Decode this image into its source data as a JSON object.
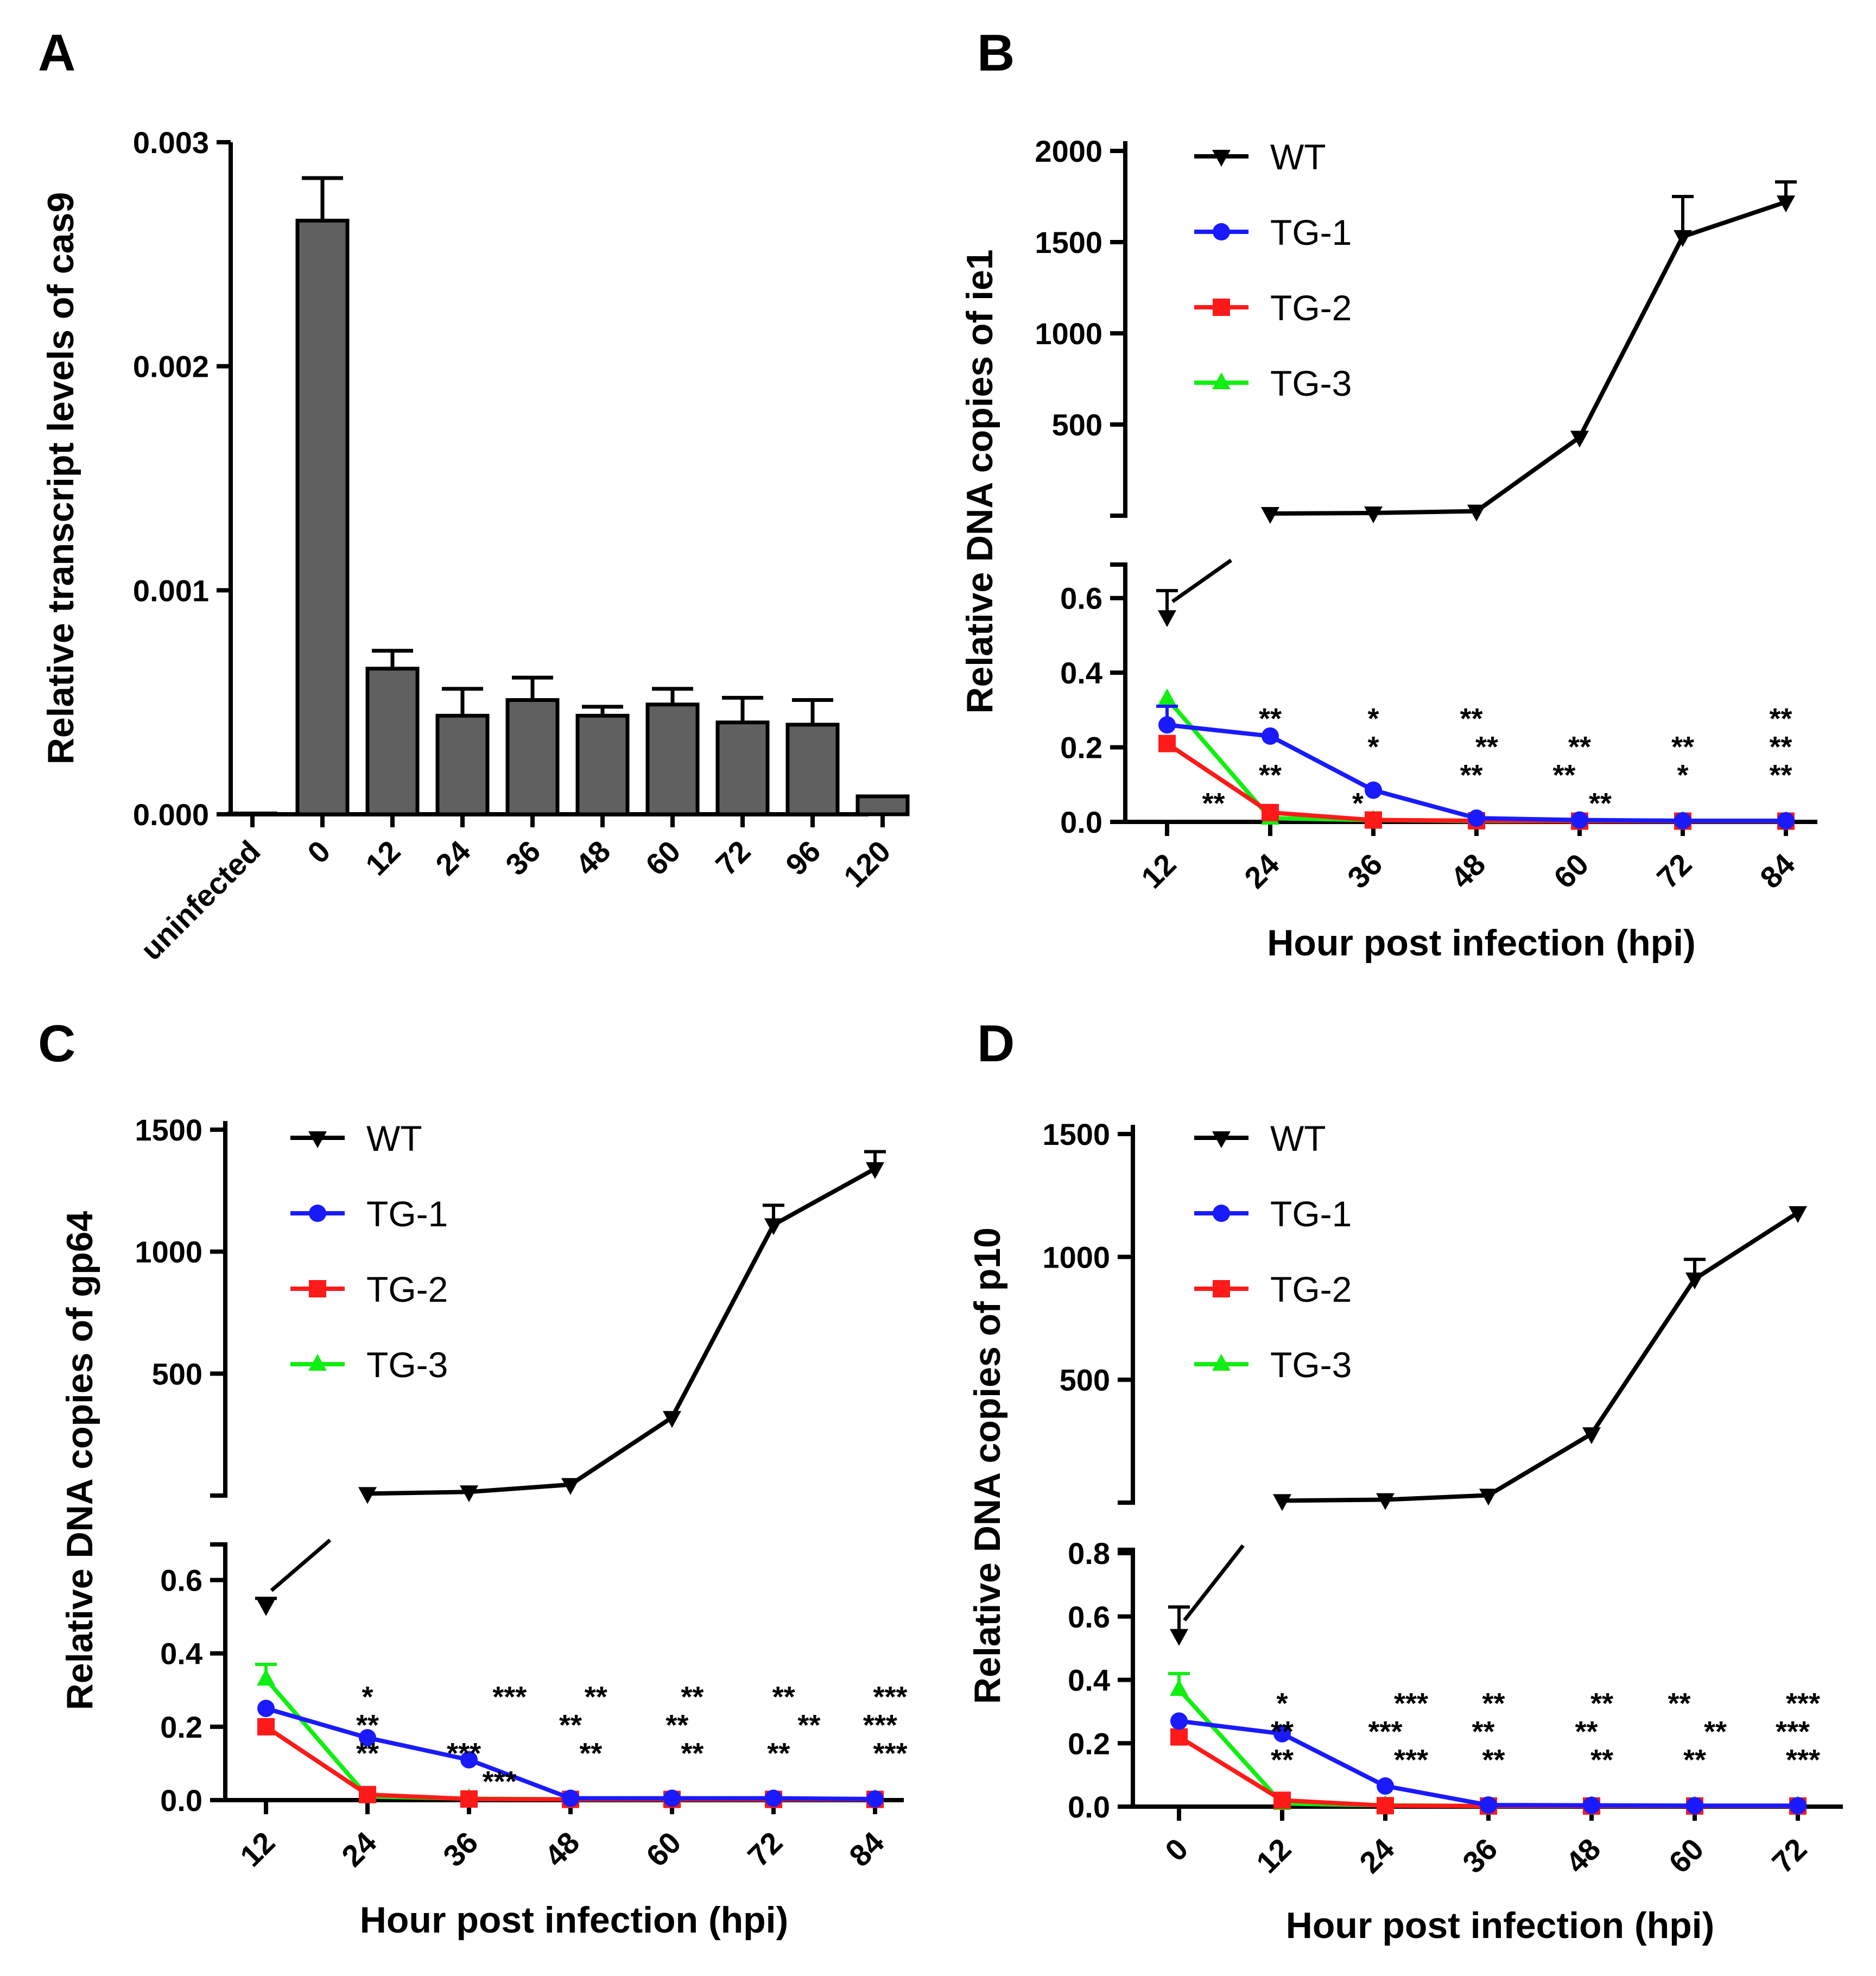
{
  "chart_data": [
    {
      "id": "A",
      "panel_label": "A",
      "type": "bar",
      "ylabel": "Relative transcript levels of cas9",
      "xlabel": "",
      "ylim": [
        0,
        0.003
      ],
      "yticks": [
        0.0,
        0.001,
        0.002,
        0.003
      ],
      "ytick_labels": [
        "0.000",
        "0.001",
        "0.002",
        "0.003"
      ],
      "categories": [
        "uninfected",
        "0",
        "12",
        "24",
        "36",
        "48",
        "60",
        "72",
        "96",
        "120"
      ],
      "values": [
        0.0,
        0.00265,
        0.00065,
        0.00044,
        0.00051,
        0.00044,
        0.00049,
        0.00041,
        0.0004,
        8e-05
      ],
      "errors": [
        0.0,
        0.00019,
        8e-05,
        0.00012,
        0.0001,
        4e-05,
        7e-05,
        0.00011,
        0.00011,
        0.0
      ],
      "bar_color": "#606060"
    },
    {
      "id": "B",
      "panel_label": "B",
      "type": "line",
      "ylabel": "Relative DNA copies of ie1",
      "xlabel": "Hour post  infection (hpi)",
      "x": [
        "12",
        "24",
        "36",
        "48",
        "60",
        "72",
        "84"
      ],
      "upper_ylim": [
        0,
        2000
      ],
      "upper_yticks": [
        500,
        1000,
        1500,
        2000
      ],
      "lower_ylim": [
        0,
        0.7
      ],
      "lower_yticks": [
        0.0,
        0.2,
        0.4,
        0.6
      ],
      "lower_ytick_labels": [
        "0.0",
        "0.2",
        "0.4",
        "0.6"
      ],
      "series": [
        {
          "name": "WT",
          "color": "#000000",
          "marker": "tri-down",
          "values": [
            0.55,
            12,
            15,
            25,
            430,
            1530,
            1720
          ],
          "errors": [
            0.07,
            0,
            0,
            0,
            0,
            220,
            110
          ]
        },
        {
          "name": "TG-1",
          "color": "#1a1aff",
          "marker": "circle",
          "values": [
            0.26,
            0.23,
            0.085,
            0.01,
            0.005,
            0.003,
            0.003
          ],
          "errors": [
            0.05,
            0,
            0,
            0,
            0,
            0,
            0
          ]
        },
        {
          "name": "TG-2",
          "color": "#ff1a1a",
          "marker": "square",
          "values": [
            0.21,
            0.025,
            0.005,
            0.003,
            0.002,
            0.002,
            0.002
          ],
          "errors": [
            0,
            0,
            0,
            0,
            0,
            0,
            0
          ]
        },
        {
          "name": "TG-3",
          "color": "#11ee11",
          "marker": "tri-up",
          "values": [
            0.33,
            0.01,
            0.005,
            0.002,
            0.002,
            0.002,
            0.002
          ],
          "errors": [
            0,
            0,
            0,
            0,
            0,
            0,
            0
          ]
        }
      ],
      "annotations": [
        {
          "text": "**",
          "x": 1,
          "row": 3
        },
        {
          "text": "**",
          "x": 0.45,
          "row": 0
        },
        {
          "text": "**",
          "x": 1,
          "row": 1
        },
        {
          "text": "*",
          "x": 2,
          "row": 3
        },
        {
          "text": "*",
          "x": 2,
          "row": 2
        },
        {
          "text": "*",
          "x": 1.85,
          "row": 0
        },
        {
          "text": "**",
          "x": 2.95,
          "row": 3
        },
        {
          "text": "**",
          "x": 3.1,
          "row": 2
        },
        {
          "text": "**",
          "x": 2.95,
          "row": 1
        },
        {
          "text": "**",
          "x": 4,
          "row": 2
        },
        {
          "text": "**",
          "x": 3.85,
          "row": 1
        },
        {
          "text": "**",
          "x": 4.2,
          "row": 0
        },
        {
          "text": "**",
          "x": 5,
          "row": 2
        },
        {
          "text": "*",
          "x": 5,
          "row": 1
        },
        {
          "text": "**",
          "x": 5.95,
          "row": 3
        },
        {
          "text": "**",
          "x": 5.95,
          "row": 2
        },
        {
          "text": "**",
          "x": 5.95,
          "row": 1
        }
      ]
    },
    {
      "id": "C",
      "panel_label": "C",
      "type": "line",
      "ylabel": "Relative DNA copies of gp64",
      "xlabel": "Hour post  infection (hpi)",
      "x": [
        "12",
        "24",
        "36",
        "48",
        "60",
        "72",
        "84"
      ],
      "upper_ylim": [
        0,
        1500
      ],
      "upper_yticks": [
        500,
        1000,
        1500
      ],
      "lower_ylim": [
        0,
        0.7
      ],
      "lower_yticks": [
        0.0,
        0.2,
        0.4,
        0.6
      ],
      "lower_ytick_labels": [
        "0.0",
        "0.2",
        "0.4",
        "0.6"
      ],
      "series": [
        {
          "name": "WT",
          "color": "#000000",
          "marker": "tri-down",
          "values": [
            0.53,
            8,
            15,
            45,
            320,
            1110,
            1340
          ],
          "errors": [
            0.02,
            0,
            0,
            0,
            0,
            80,
            70
          ]
        },
        {
          "name": "TG-1",
          "color": "#1a1aff",
          "marker": "circle",
          "values": [
            0.25,
            0.17,
            0.11,
            0.005,
            0.005,
            0.005,
            0.003
          ],
          "errors": [
            0,
            0,
            0,
            0,
            0,
            0,
            0
          ]
        },
        {
          "name": "TG-2",
          "color": "#ff1a1a",
          "marker": "square",
          "values": [
            0.2,
            0.015,
            0.003,
            0.002,
            0.002,
            0.002,
            0.002
          ],
          "errors": [
            0,
            0,
            0,
            0,
            0,
            0,
            0
          ]
        },
        {
          "name": "TG-3",
          "color": "#11ee11",
          "marker": "tri-up",
          "values": [
            0.33,
            0.01,
            0.004,
            0.002,
            0.002,
            0.002,
            0.002
          ],
          "errors": [
            0.04,
            0,
            0,
            0,
            0,
            0,
            0
          ]
        }
      ],
      "annotations": [
        {
          "text": "*",
          "x": 1,
          "row": 3
        },
        {
          "text": "**",
          "x": 1,
          "row": 2
        },
        {
          "text": "**",
          "x": 1,
          "row": 1
        },
        {
          "text": "***",
          "x": 2.4,
          "row": 3
        },
        {
          "text": "***",
          "x": 1.95,
          "row": 1
        },
        {
          "text": "***",
          "x": 2.3,
          "row": 0
        },
        {
          "text": "**",
          "x": 3.25,
          "row": 3
        },
        {
          "text": "**",
          "x": 3,
          "row": 2
        },
        {
          "text": "**",
          "x": 3.2,
          "row": 1
        },
        {
          "text": "**",
          "x": 4.2,
          "row": 3
        },
        {
          "text": "**",
          "x": 4.05,
          "row": 2
        },
        {
          "text": "**",
          "x": 4.2,
          "row": 1
        },
        {
          "text": "**",
          "x": 5.1,
          "row": 3
        },
        {
          "text": "**",
          "x": 5.35,
          "row": 2
        },
        {
          "text": "**",
          "x": 5.05,
          "row": 1
        },
        {
          "text": "***",
          "x": 6.15,
          "row": 3
        },
        {
          "text": "***",
          "x": 6.05,
          "row": 2
        },
        {
          "text": "***",
          "x": 6.15,
          "row": 1
        }
      ]
    },
    {
      "id": "D",
      "panel_label": "D",
      "type": "line",
      "ylabel": "Relative DNA copies of p10",
      "xlabel": "Hour post  infection (hpi)",
      "x": [
        "0",
        "12",
        "24",
        "36",
        "48",
        "60",
        "72"
      ],
      "upper_ylim": [
        0,
        1500
      ],
      "upper_yticks": [
        500,
        1000,
        1500
      ],
      "lower_ylim": [
        0,
        0.8
      ],
      "lower_yticks": [
        0.0,
        0.2,
        0.4,
        0.6,
        0.8
      ],
      "lower_ytick_labels": [
        "0.0",
        "0.2",
        "0.4",
        "0.6",
        "0.8"
      ],
      "series": [
        {
          "name": "WT",
          "color": "#000000",
          "marker": "tri-down",
          "values": [
            0.54,
            8,
            12,
            30,
            280,
            910,
            1180
          ],
          "errors": [
            0.09,
            0,
            0,
            0,
            0,
            80,
            0
          ]
        },
        {
          "name": "TG-1",
          "color": "#1a1aff",
          "marker": "circle",
          "values": [
            0.27,
            0.23,
            0.065,
            0.005,
            0.004,
            0.003,
            0.003
          ],
          "errors": [
            0,
            0,
            0,
            0,
            0,
            0,
            0
          ]
        },
        {
          "name": "TG-2",
          "color": "#ff1a1a",
          "marker": "square",
          "values": [
            0.22,
            0.02,
            0.003,
            0.002,
            0.002,
            0.002,
            0.002
          ],
          "errors": [
            0,
            0,
            0,
            0,
            0,
            0,
            0
          ]
        },
        {
          "name": "TG-3",
          "color": "#11ee11",
          "marker": "tri-up",
          "values": [
            0.37,
            0.01,
            0.004,
            0.002,
            0.002,
            0.002,
            0.002
          ],
          "errors": [
            0.05,
            0,
            0,
            0,
            0,
            0,
            0
          ]
        }
      ],
      "annotations": [
        {
          "text": "*",
          "x": 1,
          "row": 3
        },
        {
          "text": "**",
          "x": 1,
          "row": 2
        },
        {
          "text": "**",
          "x": 1,
          "row": 1
        },
        {
          "text": "***",
          "x": 2.25,
          "row": 3
        },
        {
          "text": "***",
          "x": 2,
          "row": 2
        },
        {
          "text": "***",
          "x": 2.25,
          "row": 1
        },
        {
          "text": "**",
          "x": 3.05,
          "row": 3
        },
        {
          "text": "**",
          "x": 2.95,
          "row": 2
        },
        {
          "text": "**",
          "x": 3.05,
          "row": 1
        },
        {
          "text": "**",
          "x": 4.1,
          "row": 3
        },
        {
          "text": "**",
          "x": 3.95,
          "row": 2
        },
        {
          "text": "**",
          "x": 4.1,
          "row": 1
        },
        {
          "text": "**",
          "x": 4.85,
          "row": 3
        },
        {
          "text": "**",
          "x": 5.2,
          "row": 2
        },
        {
          "text": "**",
          "x": 5,
          "row": 1
        },
        {
          "text": "***",
          "x": 6.05,
          "row": 3
        },
        {
          "text": "***",
          "x": 5.95,
          "row": 2
        },
        {
          "text": "***",
          "x": 6.05,
          "row": 1
        }
      ]
    }
  ]
}
